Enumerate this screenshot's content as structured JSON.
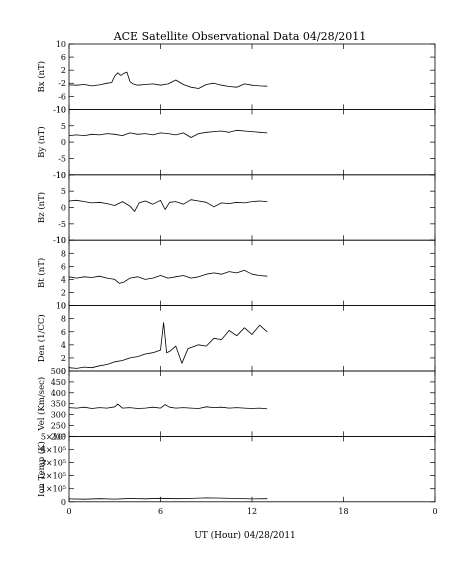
{
  "chart_data": {
    "type": "line",
    "title": "ACE Satellite Observational Data   04/28/2011",
    "xlabel": "UT (Hour)   04/28/2011",
    "x_ticks": [
      "0",
      "6",
      "12",
      "18",
      "0"
    ],
    "xlim": [
      0,
      24
    ],
    "panels": [
      {
        "ylabel": "Bx (nT)",
        "ylim": [
          -10,
          10
        ],
        "y_ticks": [
          "10",
          "6",
          "2",
          "-2",
          "-6",
          "-10"
        ],
        "x": [
          0,
          0.5,
          1,
          1.5,
          2,
          2.5,
          2.8,
          3,
          3.2,
          3.4,
          3.6,
          3.8,
          4,
          4.2,
          4.5,
          5,
          5.5,
          6,
          6.5,
          7,
          7.5,
          8,
          8.5,
          9,
          9.5,
          10,
          10.5,
          11,
          11.5,
          12,
          12.5,
          13
        ],
        "values": [
          -2.5,
          -2.6,
          -2.4,
          -2.8,
          -2.5,
          -2.0,
          -1.8,
          0.2,
          1.2,
          0.4,
          1.0,
          1.4,
          -1.5,
          -2.2,
          -2.6,
          -2.4,
          -2.2,
          -2.6,
          -2.2,
          -1.0,
          -2.4,
          -3.2,
          -3.6,
          -2.4,
          -2.0,
          -2.6,
          -3.0,
          -3.2,
          -2.2,
          -2.6,
          -2.8,
          -2.9
        ]
      },
      {
        "ylabel": "By (nT)",
        "ylim": [
          -10,
          10
        ],
        "y_ticks": [
          "10",
          "5",
          "0",
          "-5",
          "-10"
        ],
        "x": [
          0,
          0.5,
          1,
          1.5,
          2,
          2.5,
          3,
          3.5,
          4,
          4.5,
          5,
          5.5,
          6,
          6.5,
          7,
          7.5,
          8,
          8.5,
          9,
          9.5,
          10,
          10.5,
          11,
          11.5,
          12,
          12.5,
          13
        ],
        "values": [
          2.0,
          2.2,
          2.0,
          2.4,
          2.2,
          2.6,
          2.4,
          2.0,
          2.8,
          2.4,
          2.6,
          2.2,
          2.8,
          2.6,
          2.2,
          2.8,
          1.4,
          2.6,
          3.0,
          3.2,
          3.4,
          3.0,
          3.6,
          3.4,
          3.2,
          3.0,
          2.8
        ]
      },
      {
        "ylabel": "Bz (nT)",
        "ylim": [
          -10,
          10
        ],
        "y_ticks": [
          "10",
          "5",
          "0",
          "-5",
          "-10"
        ],
        "x": [
          0,
          0.5,
          1,
          1.5,
          2,
          2.5,
          3,
          3.5,
          4,
          4.3,
          4.6,
          5,
          5.5,
          6,
          6.3,
          6.6,
          7,
          7.5,
          8,
          8.5,
          9,
          9.5,
          10,
          10.5,
          11,
          11.5,
          12,
          12.5,
          13
        ],
        "values": [
          2.0,
          2.2,
          1.8,
          1.4,
          1.6,
          1.2,
          0.6,
          1.8,
          0.4,
          -1.2,
          1.4,
          2.0,
          1.0,
          2.2,
          -0.6,
          1.6,
          1.8,
          1.0,
          2.4,
          2.0,
          1.6,
          0.2,
          1.4,
          1.2,
          1.6,
          1.4,
          1.8,
          2.0,
          1.8
        ]
      },
      {
        "ylabel": "Bt (nT)",
        "ylim": [
          0,
          10
        ],
        "y_ticks": [
          "10",
          "8",
          "6",
          "4",
          "2",
          "0"
        ],
        "x": [
          0,
          0.5,
          1,
          1.5,
          2,
          2.5,
          3,
          3.3,
          3.6,
          4,
          4.5,
          5,
          5.5,
          6,
          6.5,
          7,
          7.5,
          8,
          8.5,
          9,
          9.5,
          10,
          10.5,
          11,
          11.5,
          12,
          12.5,
          13
        ],
        "values": [
          4.4,
          4.2,
          4.4,
          4.3,
          4.5,
          4.2,
          4.0,
          3.4,
          3.6,
          4.2,
          4.4,
          4.0,
          4.2,
          4.6,
          4.2,
          4.4,
          4.6,
          4.2,
          4.4,
          4.8,
          5.0,
          4.8,
          5.2,
          5.0,
          5.4,
          4.8,
          4.6,
          4.5
        ]
      },
      {
        "ylabel": "Den (1/CC)",
        "ylim": [
          0,
          10
        ],
        "y_ticks": [
          "10",
          "8",
          "6",
          "4",
          "2",
          "0"
        ],
        "x": [
          0,
          0.5,
          1,
          1.5,
          2,
          2.5,
          3,
          3.5,
          4,
          4.5,
          5,
          5.5,
          6,
          6.2,
          6.4,
          6.6,
          7,
          7.4,
          7.8,
          8,
          8.5,
          9,
          9.5,
          10,
          10.5,
          11,
          11.5,
          12,
          12.5,
          13
        ],
        "values": [
          0.5,
          0.4,
          0.6,
          0.5,
          0.8,
          1.0,
          1.4,
          1.6,
          2.0,
          2.2,
          2.6,
          2.8,
          3.2,
          7.4,
          2.8,
          3.0,
          3.8,
          1.2,
          3.4,
          3.6,
          4.0,
          3.8,
          5.0,
          4.8,
          6.2,
          5.4,
          6.6,
          5.6,
          7.0,
          6.0
        ]
      },
      {
        "ylabel": "Vel (Km/sec)",
        "ylim": [
          200,
          500
        ],
        "y_ticks": [
          "500",
          "450",
          "400",
          "350",
          "300",
          "250",
          "200"
        ],
        "x": [
          0,
          0.5,
          1,
          1.5,
          2,
          2.5,
          3,
          3.2,
          3.5,
          4,
          4.5,
          5,
          5.5,
          6,
          6.3,
          6.6,
          7,
          7.5,
          8,
          8.5,
          9,
          9.5,
          10,
          10.5,
          11,
          11.5,
          12,
          12.5,
          13
        ],
        "values": [
          332,
          330,
          334,
          328,
          332,
          330,
          336,
          348,
          330,
          332,
          328,
          330,
          334,
          330,
          346,
          334,
          330,
          332,
          330,
          328,
          336,
          332,
          334,
          330,
          332,
          330,
          328,
          330,
          326
        ]
      },
      {
        "ylabel": "Ion Temp (K)",
        "ylim": [
          0,
          500000
        ],
        "y_ticks": [
          "5×10⁵",
          "4×10⁵",
          "3×10⁵",
          "2×10⁵",
          "1×10⁵",
          "0"
        ],
        "x": [
          0,
          1,
          2,
          3,
          4,
          5,
          6,
          7,
          8,
          9,
          10,
          11,
          12,
          13
        ],
        "values": [
          22000,
          20000,
          24000,
          21000,
          25000,
          23000,
          27000,
          24000,
          26000,
          30000,
          28000,
          25000,
          22000,
          24000
        ]
      }
    ]
  }
}
